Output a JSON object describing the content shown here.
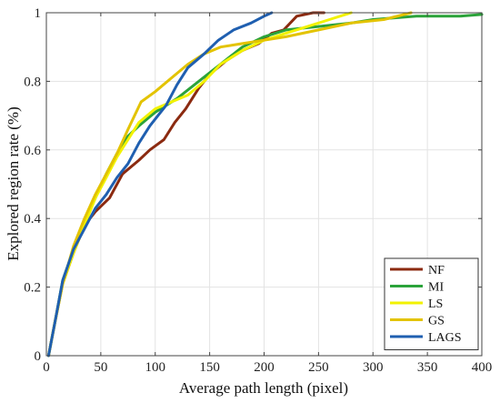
{
  "chart_data": {
    "type": "line",
    "xlabel": "Average path length (pixel)",
    "ylabel": "Explored region rate (%)",
    "xlim": [
      0,
      400
    ],
    "ylim": [
      0,
      1
    ],
    "x_ticks": [
      0,
      50,
      100,
      150,
      200,
      250,
      300,
      350,
      400
    ],
    "y_ticks": [
      0,
      0.2,
      0.4,
      0.6,
      0.8,
      1
    ],
    "grid": true,
    "legend_position": "bottom-right",
    "series": [
      {
        "name": "NF",
        "color": "#8B2A10",
        "points": [
          [
            2,
            0
          ],
          [
            8,
            0.1
          ],
          [
            15,
            0.21
          ],
          [
            25,
            0.3
          ],
          [
            35,
            0.38
          ],
          [
            45,
            0.42
          ],
          [
            58,
            0.46
          ],
          [
            70,
            0.53
          ],
          [
            85,
            0.57
          ],
          [
            95,
            0.6
          ],
          [
            108,
            0.63
          ],
          [
            118,
            0.68
          ],
          [
            128,
            0.72
          ],
          [
            140,
            0.78
          ],
          [
            150,
            0.82
          ],
          [
            165,
            0.86
          ],
          [
            180,
            0.89
          ],
          [
            195,
            0.91
          ],
          [
            207,
            0.94
          ],
          [
            218,
            0.95
          ],
          [
            230,
            0.99
          ],
          [
            245,
            1.0
          ],
          [
            255,
            1.0
          ]
        ]
      },
      {
        "name": "MI",
        "color": "#2BA33A",
        "points": [
          [
            2,
            0
          ],
          [
            8,
            0.1
          ],
          [
            15,
            0.22
          ],
          [
            25,
            0.31
          ],
          [
            35,
            0.39
          ],
          [
            45,
            0.46
          ],
          [
            55,
            0.53
          ],
          [
            65,
            0.59
          ],
          [
            75,
            0.64
          ],
          [
            85,
            0.67
          ],
          [
            100,
            0.71
          ],
          [
            120,
            0.75
          ],
          [
            140,
            0.8
          ],
          [
            160,
            0.85
          ],
          [
            180,
            0.9
          ],
          [
            200,
            0.93
          ],
          [
            220,
            0.95
          ],
          [
            250,
            0.96
          ],
          [
            280,
            0.97
          ],
          [
            300,
            0.98
          ],
          [
            340,
            0.99
          ],
          [
            380,
            0.99
          ],
          [
            400,
            0.995
          ]
        ]
      },
      {
        "name": "LS",
        "color": "#F2F200",
        "points": [
          [
            2,
            0
          ],
          [
            8,
            0.1
          ],
          [
            15,
            0.21
          ],
          [
            25,
            0.3
          ],
          [
            35,
            0.38
          ],
          [
            45,
            0.46
          ],
          [
            55,
            0.52
          ],
          [
            65,
            0.58
          ],
          [
            75,
            0.63
          ],
          [
            85,
            0.68
          ],
          [
            100,
            0.72
          ],
          [
            115,
            0.74
          ],
          [
            130,
            0.76
          ],
          [
            145,
            0.8
          ],
          [
            160,
            0.85
          ],
          [
            180,
            0.89
          ],
          [
            200,
            0.92
          ],
          [
            220,
            0.94
          ],
          [
            240,
            0.96
          ],
          [
            260,
            0.98
          ],
          [
            280,
            1.0
          ]
        ]
      },
      {
        "name": "GS",
        "color": "#E3C300",
        "points": [
          [
            2,
            0
          ],
          [
            8,
            0.1
          ],
          [
            15,
            0.21
          ],
          [
            25,
            0.32
          ],
          [
            35,
            0.4
          ],
          [
            45,
            0.47
          ],
          [
            55,
            0.53
          ],
          [
            65,
            0.59
          ],
          [
            75,
            0.66
          ],
          [
            87,
            0.74
          ],
          [
            100,
            0.77
          ],
          [
            115,
            0.81
          ],
          [
            130,
            0.85
          ],
          [
            145,
            0.88
          ],
          [
            160,
            0.9
          ],
          [
            180,
            0.91
          ],
          [
            200,
            0.92
          ],
          [
            220,
            0.93
          ],
          [
            250,
            0.95
          ],
          [
            280,
            0.97
          ],
          [
            310,
            0.98
          ],
          [
            335,
            1.0
          ]
        ]
      },
      {
        "name": "LAGS",
        "color": "#1F5FB0",
        "points": [
          [
            2,
            0
          ],
          [
            8,
            0.1
          ],
          [
            15,
            0.22
          ],
          [
            25,
            0.31
          ],
          [
            35,
            0.37
          ],
          [
            45,
            0.43
          ],
          [
            55,
            0.47
          ],
          [
            65,
            0.52
          ],
          [
            75,
            0.56
          ],
          [
            85,
            0.62
          ],
          [
            95,
            0.67
          ],
          [
            110,
            0.73
          ],
          [
            120,
            0.79
          ],
          [
            130,
            0.84
          ],
          [
            145,
            0.88
          ],
          [
            158,
            0.92
          ],
          [
            172,
            0.95
          ],
          [
            188,
            0.97
          ],
          [
            200,
            0.99
          ],
          [
            207,
            1.0
          ]
        ]
      }
    ]
  }
}
